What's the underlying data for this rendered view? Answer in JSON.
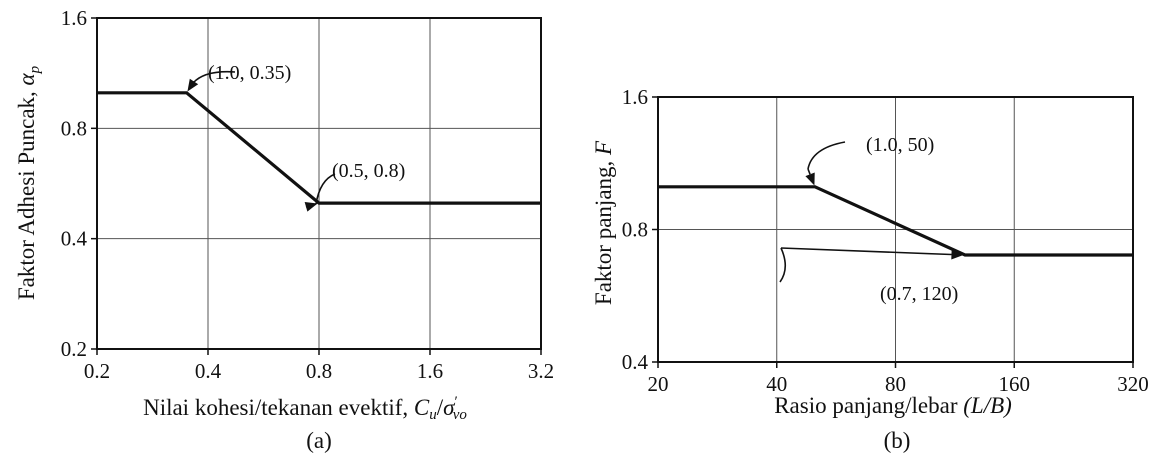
{
  "chart_data": [
    {
      "type": "line",
      "caption": "(a)",
      "xlabel_text": "Nilai kohesi/tekanan evektif",
      "xlabel_symbol": {
        "main": "C",
        "sub1": "u",
        "slash": "/",
        "sigma": "σ",
        "prime": "′",
        "sub2": "vo"
      },
      "ylabel_text": "Faktor Adhesi Puncak,",
      "ylabel_symbol": {
        "main": "α",
        "sub": "p"
      },
      "x_scale": "log",
      "y_scale": "log",
      "xlim": [
        0.2,
        3.2
      ],
      "ylim": [
        0.2,
        1.6
      ],
      "xticks": [
        0.2,
        0.4,
        0.8,
        1.6,
        3.2
      ],
      "xtick_labels": [
        "0.2",
        "0.4",
        "0.8",
        "1.6",
        "3.2"
      ],
      "yticks": [
        0.2,
        0.4,
        0.8,
        1.6
      ],
      "ytick_labels": [
        "0.2",
        "0.4",
        "0.8",
        "1.6"
      ],
      "grid": true,
      "series": [
        {
          "x": [
            0.2,
            0.35,
            0.8,
            3.2
          ],
          "y": [
            1.0,
            1.0,
            0.5,
            0.5
          ]
        }
      ],
      "annotations": [
        {
          "text": "(1.0, 0.35)",
          "x": 0.35,
          "y": 1.0
        },
        {
          "text": "(0.5, 0.8)",
          "x": 0.8,
          "y": 0.5
        }
      ]
    },
    {
      "type": "line",
      "caption": "(b)",
      "xlabel_text": "Rasio panjang/lebar",
      "xlabel_italic": "(L/B)",
      "ylabel_text": "Faktor panjang,",
      "ylabel_italic": "F",
      "x_scale": "log",
      "y_scale": "log",
      "xlim": [
        20,
        320
      ],
      "ylim": [
        0.4,
        1.6
      ],
      "xticks": [
        20,
        40,
        80,
        160,
        320
      ],
      "xtick_labels": [
        "20",
        "40",
        "80",
        "160",
        "320"
      ],
      "yticks": [
        0.4,
        0.8,
        1.6
      ],
      "ytick_labels": [
        "0.4",
        "0.8",
        "1.6"
      ],
      "grid": true,
      "series": [
        {
          "x": [
            20,
            50,
            120,
            320
          ],
          "y": [
            1.0,
            1.0,
            0.7,
            0.7
          ]
        }
      ],
      "annotations": [
        {
          "text": "(1.0, 50)",
          "x": 50,
          "y": 1.0
        },
        {
          "text": "(0.7, 120)",
          "x": 120,
          "y": 0.7
        }
      ]
    }
  ]
}
